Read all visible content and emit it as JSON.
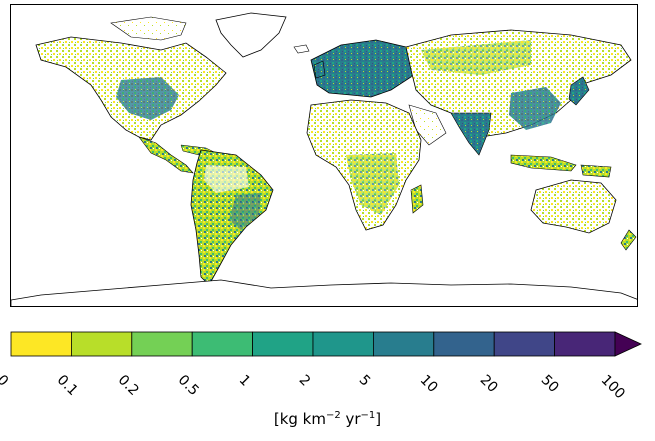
{
  "map": {
    "variable_colorbar_units_prefix": "[kg km",
    "units_exp1": "−2",
    "units_mid": " yr",
    "units_exp2": "−1",
    "units_suffix": "]"
  },
  "legend": {
    "bins": [
      {
        "from": "0",
        "to": "0.1",
        "color": "#fde725"
      },
      {
        "from": "0.1",
        "to": "0.2",
        "color": "#b8de29"
      },
      {
        "from": "0.2",
        "to": "0.5",
        "color": "#74d055"
      },
      {
        "from": "0.5",
        "to": "1",
        "color": "#3dbc74"
      },
      {
        "from": "1",
        "to": "2",
        "color": "#20a386"
      },
      {
        "from": "2",
        "to": "5",
        "color": "#1f968b"
      },
      {
        "from": "5",
        "to": "10",
        "color": "#287d8e"
      },
      {
        "from": "10",
        "to": "20",
        "color": "#33638d"
      },
      {
        "from": "20",
        "to": "50",
        "color": "#404688"
      },
      {
        "from": "50",
        "to": "100",
        "color": "#482677"
      }
    ],
    "extend_color": "#440154",
    "tick_labels": [
      "0",
      "0.1",
      "0.2",
      "0.5",
      "1",
      "2",
      "5",
      "10",
      "20",
      "50",
      "100"
    ]
  }
}
